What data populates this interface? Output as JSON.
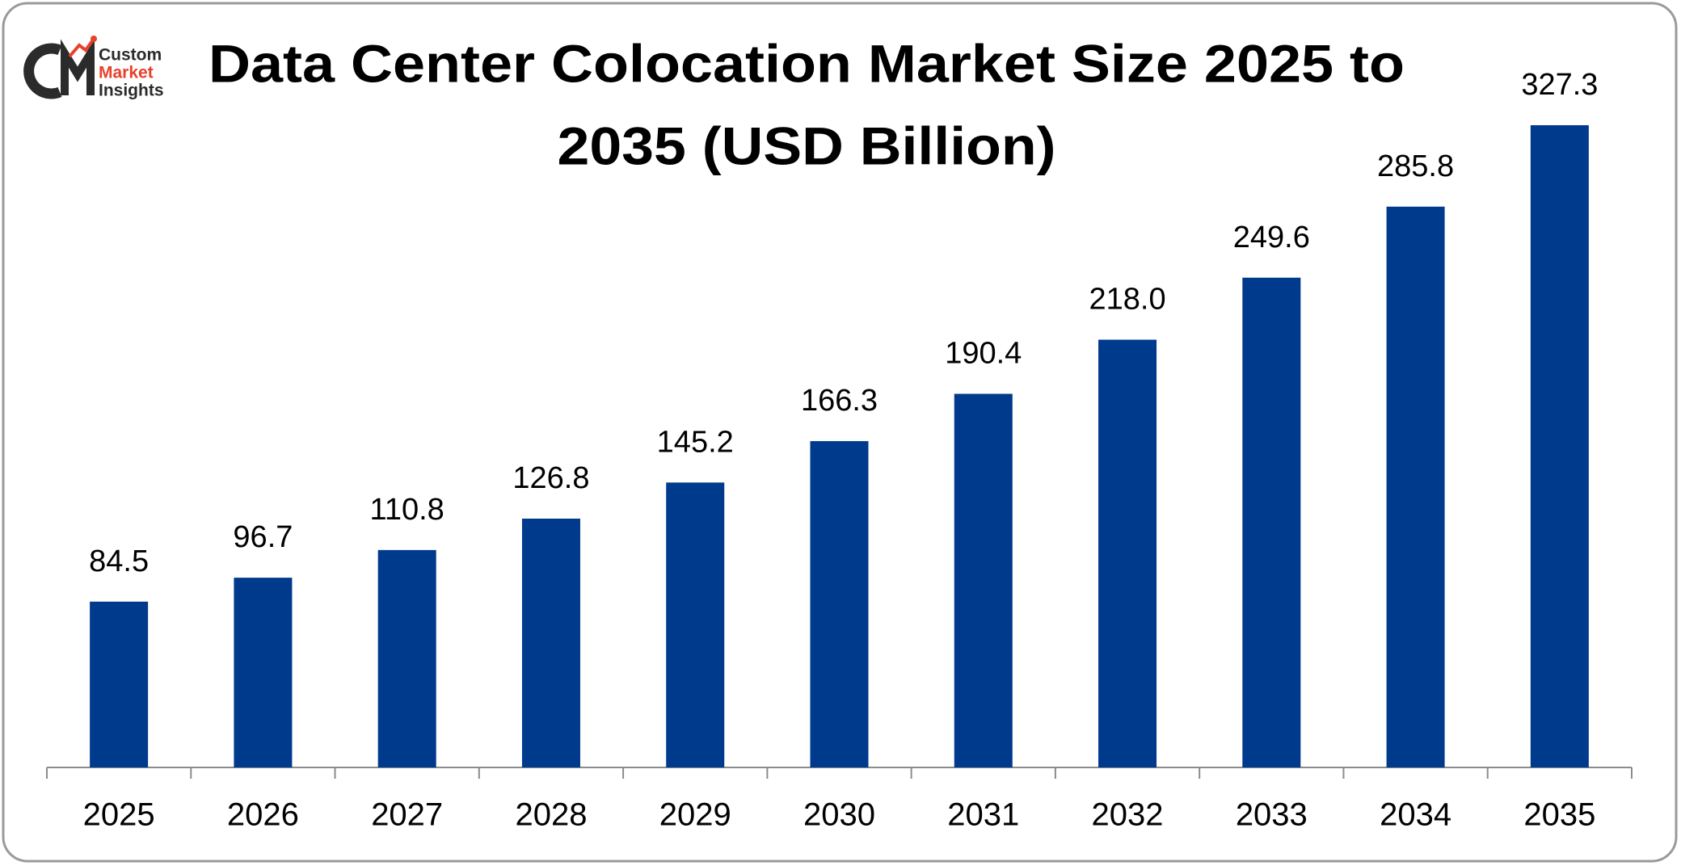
{
  "chart_data": {
    "type": "bar",
    "title": [
      "Data Center Colocation Market Size 2025 to",
      "2035 (USD Billion)"
    ],
    "logo": [
      "Custom",
      "Market",
      "Insights"
    ],
    "categories": [
      "2025",
      "2026",
      "2027",
      "2028",
      "2029",
      "2030",
      "2031",
      "2032",
      "2033",
      "2034",
      "2035"
    ],
    "values": [
      84.5,
      96.7,
      110.8,
      126.8,
      145.2,
      166.3,
      190.4,
      218.0,
      249.6,
      285.8,
      327.3
    ],
    "value_labels": [
      "84.5",
      "96.7",
      "110.8",
      "126.8",
      "145.2",
      "166.3",
      "190.4",
      "218.0",
      "249.6",
      "285.8",
      "327.3"
    ],
    "color": "#003a8c"
  }
}
